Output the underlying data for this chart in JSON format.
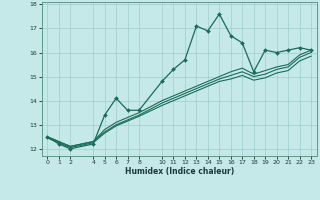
{
  "xlabel": "Humidex (Indice chaleur)",
  "background_color": "#c5e8e8",
  "grid_color": "#a0cece",
  "line_color": "#1a6b5a",
  "xlim": [
    -0.5,
    23.5
  ],
  "ylim": [
    11.7,
    18.1
  ],
  "xticks": [
    0,
    1,
    2,
    4,
    5,
    6,
    7,
    8,
    10,
    11,
    12,
    13,
    14,
    15,
    16,
    17,
    18,
    19,
    20,
    21,
    22,
    23
  ],
  "yticks": [
    12,
    13,
    14,
    15,
    16,
    17,
    18
  ],
  "series": {
    "line1_x": [
      0,
      1,
      2,
      4,
      5,
      6,
      7,
      8,
      10,
      11,
      12,
      13,
      14,
      15,
      16,
      17,
      18,
      19,
      20,
      21,
      22,
      23
    ],
    "line1_y": [
      12.5,
      12.2,
      12.0,
      12.2,
      13.4,
      14.1,
      13.6,
      13.6,
      14.8,
      15.3,
      15.7,
      17.1,
      16.9,
      17.6,
      16.7,
      16.4,
      15.2,
      16.1,
      16.0,
      16.1,
      16.2,
      16.1
    ],
    "line2_x": [
      0,
      1,
      2,
      4,
      5,
      6,
      7,
      8,
      10,
      11,
      12,
      13,
      14,
      15,
      16,
      17,
      18,
      19,
      20,
      21,
      22,
      23
    ],
    "line2_y": [
      12.5,
      12.3,
      12.1,
      12.3,
      12.8,
      13.1,
      13.3,
      13.5,
      14.0,
      14.2,
      14.4,
      14.6,
      14.8,
      15.0,
      15.2,
      15.35,
      15.1,
      15.25,
      15.4,
      15.5,
      15.9,
      16.1
    ],
    "line3_x": [
      0,
      1,
      2,
      4,
      5,
      6,
      7,
      8,
      10,
      11,
      12,
      13,
      14,
      15,
      16,
      17,
      18,
      19,
      20,
      21,
      22,
      23
    ],
    "line3_y": [
      12.5,
      12.3,
      12.1,
      12.3,
      12.7,
      13.0,
      13.2,
      13.4,
      13.9,
      14.1,
      14.3,
      14.5,
      14.7,
      14.9,
      15.05,
      15.2,
      15.0,
      15.1,
      15.3,
      15.4,
      15.8,
      16.0
    ],
    "line4_x": [
      0,
      1,
      2,
      4,
      5,
      6,
      7,
      8,
      10,
      11,
      12,
      13,
      14,
      15,
      16,
      17,
      18,
      19,
      20,
      21,
      22,
      23
    ],
    "line4_y": [
      12.45,
      12.25,
      12.05,
      12.25,
      12.65,
      12.95,
      13.15,
      13.35,
      13.8,
      14.0,
      14.2,
      14.4,
      14.6,
      14.8,
      14.9,
      15.05,
      14.85,
      14.95,
      15.15,
      15.25,
      15.65,
      15.85
    ]
  }
}
